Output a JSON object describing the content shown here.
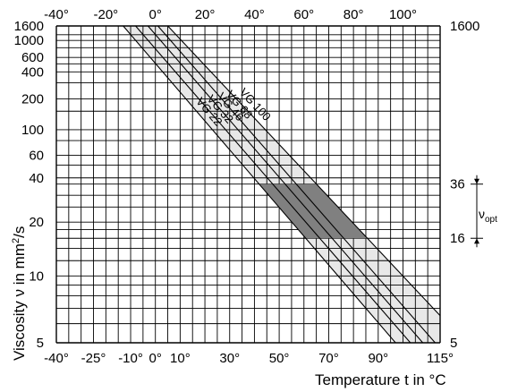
{
  "chart_data": {
    "type": "line",
    "xlabel": "Temperature t in °C",
    "ylabel_prefix": "Viscosity ",
    "ylabel_symbol": "ν",
    "ylabel_mid": " in mm",
    "ylabel_sup": "2",
    "ylabel_suffix": "/s",
    "xlim": [
      -40,
      115
    ],
    "ylim": [
      5,
      1600
    ],
    "yscale": "log-log (Ubbelohde)",
    "x_ticks_top": [
      -40,
      -20,
      0,
      20,
      40,
      60,
      80,
      100
    ],
    "x_ticks_top_labels": [
      "-40°",
      "-20°",
      "0°",
      "20°",
      "40°",
      "60°",
      "80°",
      "100°"
    ],
    "x_ticks_bottom": [
      -40,
      -25,
      -10,
      0,
      10,
      30,
      50,
      70,
      90,
      115
    ],
    "x_ticks_bottom_labels": [
      "-40°",
      "-25°",
      "-10°",
      "0°",
      "10°",
      "30°",
      "50°",
      "70°",
      "90°",
      "115°"
    ],
    "y_ticks_left": [
      5,
      10,
      20,
      40,
      60,
      100,
      200,
      400,
      600,
      1000,
      1600
    ],
    "y_ticks_left_labels": [
      "5",
      "10",
      "20",
      "40",
      "60",
      "100",
      "200",
      "400",
      "600",
      "1000",
      "1600"
    ],
    "y_ticks_right": [
      5,
      16,
      36,
      1600
    ],
    "y_ticks_right_labels": [
      "5",
      "16",
      "36",
      "1600"
    ],
    "optimal_range": {
      "low": 16,
      "high": 36,
      "symbol": "ν",
      "subscript": "opt"
    },
    "series": [
      {
        "name": "VG 22",
        "points": [
          [
            -13,
            1600
          ],
          [
            97,
            5
          ]
        ]
      },
      {
        "name": "VG 32",
        "points": [
          [
            -8,
            1600
          ],
          [
            103,
            5
          ]
        ]
      },
      {
        "name": "VG 46",
        "points": [
          [
            -3,
            1600
          ],
          [
            108,
            5
          ]
        ]
      },
      {
        "name": "VG 68",
        "points": [
          [
            1,
            1600
          ],
          [
            113,
            5
          ]
        ]
      },
      {
        "name": "VG 100",
        "points": [
          [
            5,
            1600
          ],
          [
            115,
            6.5
          ]
        ]
      }
    ],
    "colors": {
      "band_fill": "#e8e8e8",
      "optimal_fill": "#808080",
      "grid": "#000000"
    }
  }
}
